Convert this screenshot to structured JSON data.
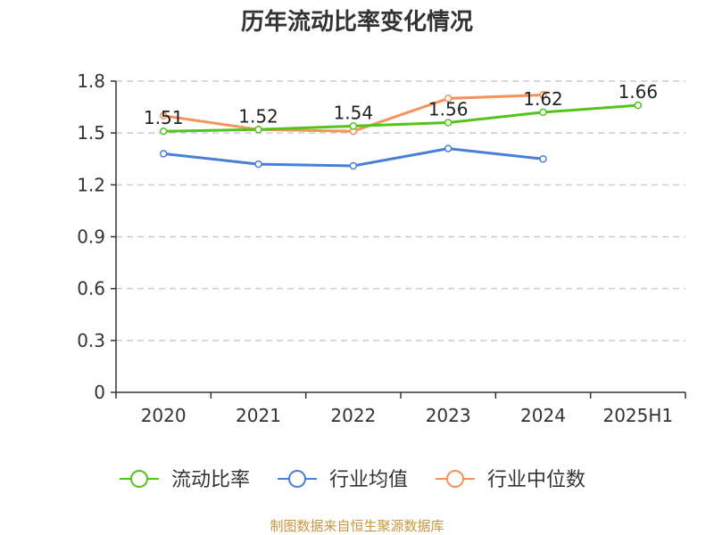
{
  "chart_data": {
    "type": "line",
    "title": "历年流动比率变化情况",
    "categories": [
      "2020",
      "2021",
      "2022",
      "2023",
      "2024",
      "2025H1"
    ],
    "ylim": [
      0,
      1.8
    ],
    "yticks": [
      "0",
      "0.3",
      "0.6",
      "0.9",
      "1.2",
      "1.5",
      "1.8"
    ],
    "grid": true,
    "legend_position": "bottom",
    "series": [
      {
        "name": "流动比率",
        "color": "#52c41a",
        "values": [
          1.51,
          1.52,
          1.54,
          1.56,
          1.62,
          1.66
        ],
        "labels": [
          "1.51",
          "1.52",
          "1.54",
          "1.56",
          "1.62",
          "1.66"
        ]
      },
      {
        "name": "行业均值",
        "color": "#4a7fd8",
        "values": [
          1.38,
          1.32,
          1.31,
          1.41,
          1.35,
          null
        ]
      },
      {
        "name": "行业中位数",
        "color": "#f5935a",
        "values": [
          1.6,
          1.52,
          1.51,
          1.7,
          1.72,
          null
        ]
      }
    ],
    "source": "制图数据来自恒生聚源数据库"
  }
}
